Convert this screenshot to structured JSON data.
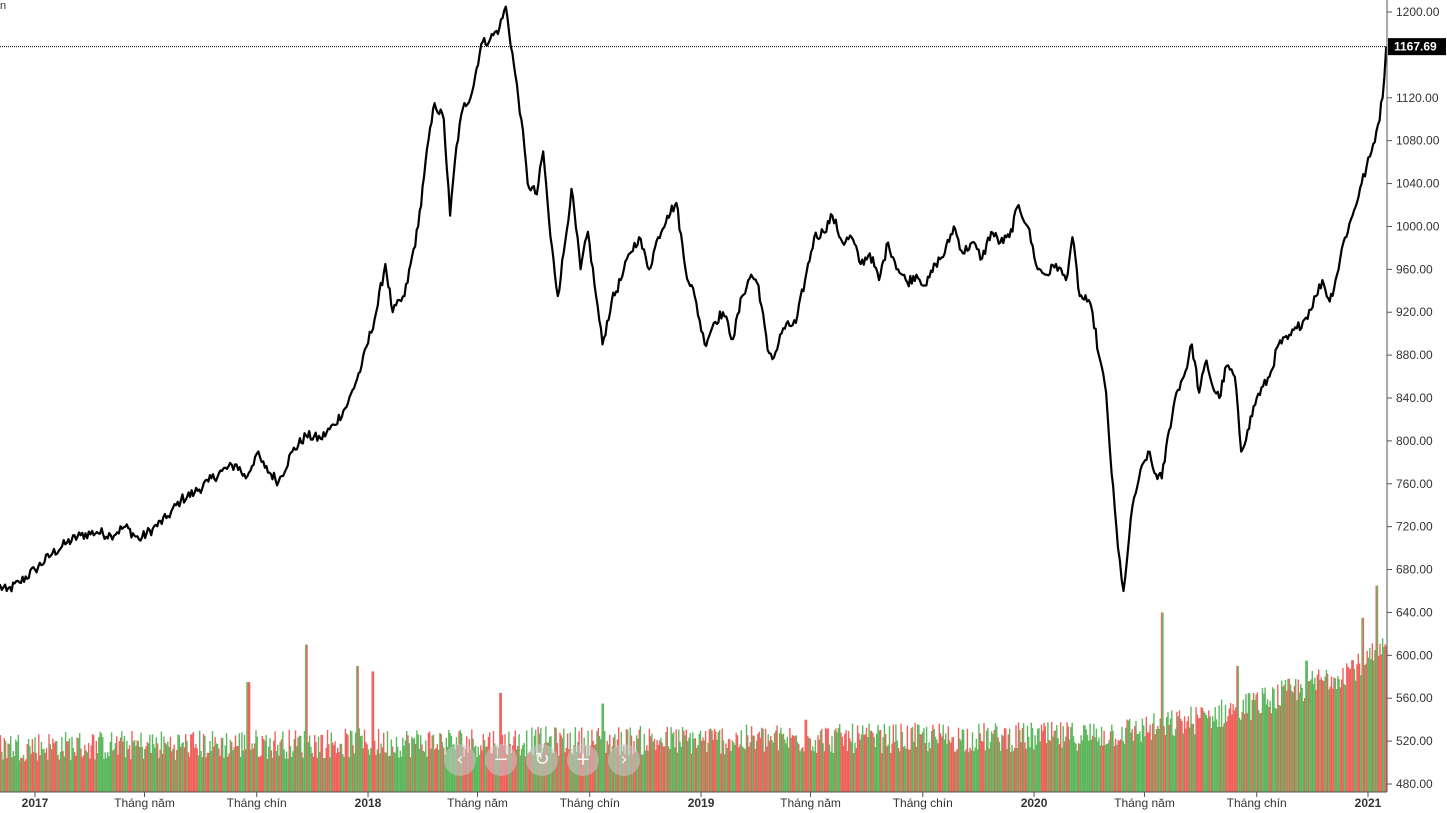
{
  "corner_text": "n",
  "nav": {
    "prev_icon": "‹",
    "zoom_out_icon": "−",
    "reset_icon": "↻",
    "zoom_in_icon": "+",
    "next_icon": "›"
  },
  "colors": {
    "line": "#000000",
    "volume_up": "#5cb85c",
    "volume_down": "#f0605d",
    "axis": "#555555",
    "last_label_bg": "#000000"
  },
  "chart_data": {
    "type": "line",
    "title": "",
    "xlabel": "",
    "ylabel": "",
    "ylim": [
      473,
      1210
    ],
    "y_ticks": [
      "1200.00",
      "1120.00",
      "1080.00",
      "1040.00",
      "1000.00",
      "960.00",
      "920.00",
      "880.00",
      "840.00",
      "800.00",
      "760.00",
      "720.00",
      "680.00",
      "640.00",
      "600.00",
      "560.00",
      "520.00",
      "480.00"
    ],
    "x_ticks": [
      {
        "label": "2017",
        "date": "2017-01-01",
        "bold": true
      },
      {
        "label": "Tháng năm",
        "date": "2017-05-01",
        "bold": false
      },
      {
        "label": "Tháng chín",
        "date": "2017-09-01",
        "bold": false
      },
      {
        "label": "2018",
        "date": "2018-01-01",
        "bold": true
      },
      {
        "label": "Tháng năm",
        "date": "2018-05-01",
        "bold": false
      },
      {
        "label": "Tháng chín",
        "date": "2018-09-01",
        "bold": false
      },
      {
        "label": "2019",
        "date": "2019-01-01",
        "bold": true
      },
      {
        "label": "Tháng năm",
        "date": "2019-05-01",
        "bold": false
      },
      {
        "label": "Tháng chín",
        "date": "2019-09-01",
        "bold": false
      },
      {
        "label": "2020",
        "date": "2020-01-01",
        "bold": true
      },
      {
        "label": "Tháng năm",
        "date": "2020-05-01",
        "bold": false
      },
      {
        "label": "Tháng chín",
        "date": "2020-09-01",
        "bold": false
      },
      {
        "label": "2021",
        "date": "2021-01-01",
        "bold": true
      }
    ],
    "last_value": "1167.69",
    "series": [
      {
        "points": [
          [
            "2016-11-22",
            665
          ],
          [
            "2016-12-01",
            660
          ],
          [
            "2016-12-15",
            668
          ],
          [
            "2017-01-01",
            680
          ],
          [
            "2017-01-20",
            695
          ],
          [
            "2017-02-05",
            705
          ],
          [
            "2017-02-20",
            712
          ],
          [
            "2017-03-10",
            715
          ],
          [
            "2017-03-25",
            712
          ],
          [
            "2017-04-10",
            720
          ],
          [
            "2017-04-25",
            708
          ],
          [
            "2017-05-10",
            718
          ],
          [
            "2017-05-25",
            728
          ],
          [
            "2017-06-10",
            745
          ],
          [
            "2017-06-25",
            752
          ],
          [
            "2017-07-10",
            762
          ],
          [
            "2017-07-25",
            772
          ],
          [
            "2017-08-10",
            778
          ],
          [
            "2017-08-20",
            765
          ],
          [
            "2017-09-01",
            788
          ],
          [
            "2017-09-10",
            775
          ],
          [
            "2017-09-25",
            762
          ],
          [
            "2017-10-10",
            790
          ],
          [
            "2017-10-25",
            805
          ],
          [
            "2017-11-10",
            802
          ],
          [
            "2017-11-25",
            815
          ],
          [
            "2017-12-10",
            835
          ],
          [
            "2017-12-25",
            870
          ],
          [
            "2018-01-10",
            920
          ],
          [
            "2018-01-20",
            965
          ],
          [
            "2018-01-28",
            920
          ],
          [
            "2018-02-10",
            935
          ],
          [
            "2018-02-25",
            1000
          ],
          [
            "2018-03-05",
            1060
          ],
          [
            "2018-03-15",
            1115
          ],
          [
            "2018-03-25",
            1100
          ],
          [
            "2018-04-01",
            1010
          ],
          [
            "2018-04-08",
            1075
          ],
          [
            "2018-04-15",
            1110
          ],
          [
            "2018-04-25",
            1125
          ],
          [
            "2018-05-05",
            1170
          ],
          [
            "2018-05-15",
            1175
          ],
          [
            "2018-05-25",
            1185
          ],
          [
            "2018-06-01",
            1205
          ],
          [
            "2018-06-10",
            1150
          ],
          [
            "2018-06-18",
            1100
          ],
          [
            "2018-06-25",
            1040
          ],
          [
            "2018-07-05",
            1030
          ],
          [
            "2018-07-12",
            1070
          ],
          [
            "2018-07-20",
            990
          ],
          [
            "2018-07-28",
            935
          ],
          [
            "2018-08-05",
            985
          ],
          [
            "2018-08-12",
            1035
          ],
          [
            "2018-08-22",
            960
          ],
          [
            "2018-08-30",
            995
          ],
          [
            "2018-09-08",
            935
          ],
          [
            "2018-09-15",
            890
          ],
          [
            "2018-09-25",
            930
          ],
          [
            "2018-10-05",
            950
          ],
          [
            "2018-10-15",
            975
          ],
          [
            "2018-10-25",
            990
          ],
          [
            "2018-11-05",
            960
          ],
          [
            "2018-11-15",
            990
          ],
          [
            "2018-11-25",
            1010
          ],
          [
            "2018-12-05",
            1022
          ],
          [
            "2018-12-15",
            960
          ],
          [
            "2018-12-25",
            935
          ],
          [
            "2019-01-05",
            890
          ],
          [
            "2019-01-15",
            910
          ],
          [
            "2019-01-25",
            920
          ],
          [
            "2019-02-05",
            895
          ],
          [
            "2019-02-15",
            935
          ],
          [
            "2019-02-25",
            955
          ],
          [
            "2019-03-05",
            945
          ],
          [
            "2019-03-15",
            885
          ],
          [
            "2019-03-22",
            878
          ],
          [
            "2019-04-01",
            905
          ],
          [
            "2019-04-15",
            910
          ],
          [
            "2019-04-25",
            950
          ],
          [
            "2019-05-05",
            990
          ],
          [
            "2019-05-15",
            995
          ],
          [
            "2019-05-25",
            1010
          ],
          [
            "2019-06-05",
            985
          ],
          [
            "2019-06-15",
            990
          ],
          [
            "2019-06-25",
            965
          ],
          [
            "2019-07-05",
            975
          ],
          [
            "2019-07-15",
            950
          ],
          [
            "2019-07-25",
            985
          ],
          [
            "2019-08-05",
            960
          ],
          [
            "2019-08-15",
            948
          ],
          [
            "2019-08-25",
            955
          ],
          [
            "2019-09-05",
            945
          ],
          [
            "2019-09-15",
            965
          ],
          [
            "2019-09-25",
            975
          ],
          [
            "2019-10-05",
            1000
          ],
          [
            "2019-10-15",
            975
          ],
          [
            "2019-10-25",
            985
          ],
          [
            "2019-11-05",
            970
          ],
          [
            "2019-11-15",
            995
          ],
          [
            "2019-11-25",
            985
          ],
          [
            "2019-12-05",
            990
          ],
          [
            "2019-12-15",
            1020
          ],
          [
            "2019-12-25",
            1000
          ],
          [
            "2020-01-05",
            960
          ],
          [
            "2020-01-15",
            955
          ],
          [
            "2020-01-25",
            965
          ],
          [
            "2020-02-05",
            950
          ],
          [
            "2020-02-12",
            990
          ],
          [
            "2020-02-20",
            935
          ],
          [
            "2020-02-28",
            930
          ],
          [
            "2020-03-05",
            920
          ],
          [
            "2020-03-12",
            880
          ],
          [
            "2020-03-20",
            845
          ],
          [
            "2020-03-26",
            770
          ],
          [
            "2020-04-02",
            700
          ],
          [
            "2020-04-08",
            660
          ],
          [
            "2020-04-12",
            690
          ],
          [
            "2020-04-18",
            740
          ],
          [
            "2020-04-25",
            765
          ],
          [
            "2020-05-05",
            790
          ],
          [
            "2020-05-12",
            770
          ],
          [
            "2020-05-20",
            765
          ],
          [
            "2020-05-28",
            810
          ],
          [
            "2020-06-05",
            845
          ],
          [
            "2020-06-15",
            865
          ],
          [
            "2020-06-22",
            890
          ],
          [
            "2020-06-30",
            845
          ],
          [
            "2020-07-08",
            875
          ],
          [
            "2020-07-15",
            850
          ],
          [
            "2020-07-22",
            840
          ],
          [
            "2020-07-30",
            870
          ],
          [
            "2020-08-08",
            860
          ],
          [
            "2020-08-15",
            790
          ],
          [
            "2020-08-22",
            810
          ],
          [
            "2020-09-01",
            840
          ],
          [
            "2020-09-15",
            860
          ],
          [
            "2020-09-25",
            890
          ],
          [
            "2020-10-05",
            895
          ],
          [
            "2020-10-15",
            905
          ],
          [
            "2020-10-25",
            915
          ],
          [
            "2020-11-05",
            935
          ],
          [
            "2020-11-12",
            950
          ],
          [
            "2020-11-20",
            930
          ],
          [
            "2020-11-28",
            955
          ],
          [
            "2020-12-05",
            985
          ],
          [
            "2020-12-15",
            1010
          ],
          [
            "2020-12-25",
            1040
          ],
          [
            "2021-01-05",
            1070
          ],
          [
            "2021-01-12",
            1095
          ],
          [
            "2021-01-17",
            1120
          ],
          [
            "2021-01-21",
            1167.69
          ]
        ]
      }
    ],
    "volume": {
      "start": "2016-11-22",
      "end": "2021-01-21",
      "spikes": [
        [
          "2017-08-22",
          575
        ],
        [
          "2017-10-25",
          610
        ],
        [
          "2017-12-20",
          590
        ],
        [
          "2018-01-05",
          585
        ],
        [
          "2018-05-25",
          565
        ],
        [
          "2018-09-15",
          555
        ],
        [
          "2019-04-25",
          540
        ],
        [
          "2020-05-20",
          640
        ],
        [
          "2020-08-10",
          590
        ],
        [
          "2020-10-25",
          595
        ],
        [
          "2020-12-25",
          635
        ],
        [
          "2021-01-10",
          665
        ]
      ]
    }
  }
}
